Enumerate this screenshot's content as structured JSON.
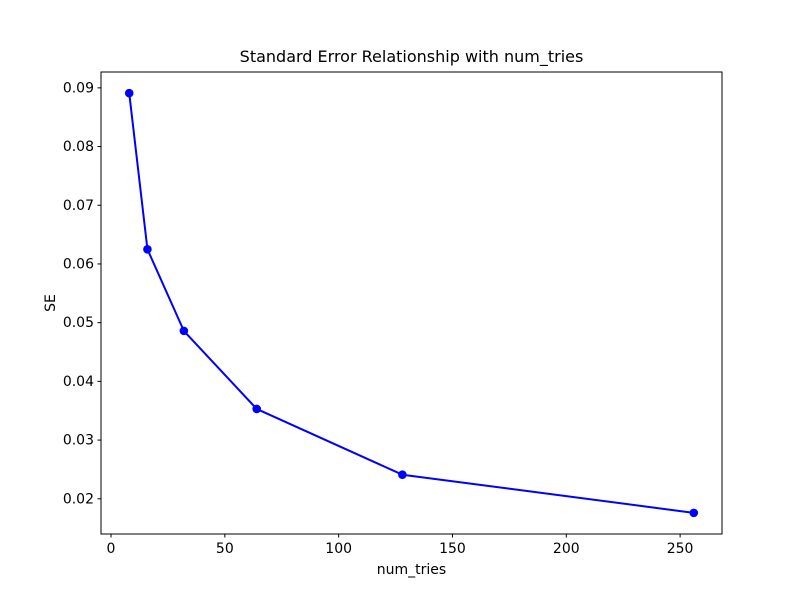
{
  "chart_data": {
    "type": "line",
    "title": "Standard Error Relationship with num_tries",
    "xlabel": "num_tries",
    "ylabel": "SE",
    "x": [
      8,
      16,
      32,
      64,
      128,
      256
    ],
    "y": [
      0.0891,
      0.0625,
      0.0486,
      0.0353,
      0.0241,
      0.0176
    ],
    "xlim": [
      -4.4,
      268.4
    ],
    "ylim": [
      0.014,
      0.0927
    ],
    "xticks": [
      0,
      50,
      100,
      150,
      200,
      250
    ],
    "yticks": [
      0.02,
      0.03,
      0.04,
      0.05,
      0.06,
      0.07,
      0.08,
      0.09
    ],
    "ytick_decimals": 2,
    "grid": false,
    "legend": "none",
    "line_color": "#0000ff",
    "marker": "circle",
    "marker_color": "#0000ff",
    "background_color": "#ffffff",
    "axis_color": "#000000",
    "text_color": "#000000"
  }
}
